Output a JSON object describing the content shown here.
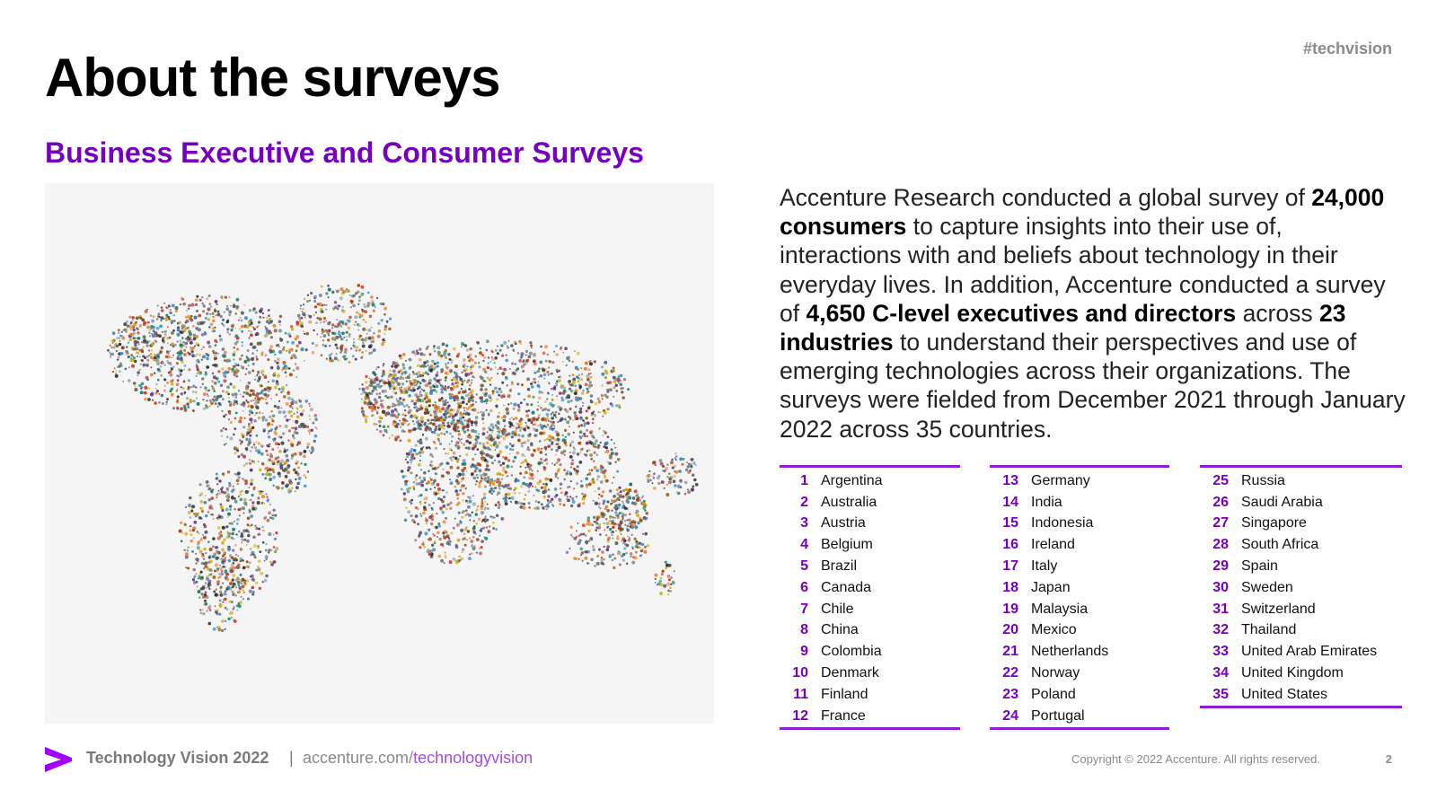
{
  "header": {
    "hashtag": "#techvision",
    "title": "About the surveys",
    "subtitle": "Business Executive and Consumer Surveys"
  },
  "intro": {
    "p1": "Accenture Research conducted a global survey of ",
    "b1": "24,000 consumers",
    "p2": " to capture insights into their use of, interactions with and beliefs about technology in their everyday lives. In addition, Accenture conducted a survey of ",
    "b2": "4,650 C-level executives and directors",
    "p3": " across ",
    "b3": "23 industries",
    "p4": " to understand their perspectives and use of emerging technologies across their organizations. The surveys were fielded from December 2021 through January 2022 across 35 countries."
  },
  "countries": [
    {
      "num": "1",
      "name": "Argentina"
    },
    {
      "num": "2",
      "name": "Australia"
    },
    {
      "num": "3",
      "name": "Austria"
    },
    {
      "num": "4",
      "name": "Belgium"
    },
    {
      "num": "5",
      "name": "Brazil"
    },
    {
      "num": "6",
      "name": "Canada"
    },
    {
      "num": "7",
      "name": "Chile"
    },
    {
      "num": "8",
      "name": "China"
    },
    {
      "num": "9",
      "name": "Colombia"
    },
    {
      "num": "10",
      "name": "Denmark"
    },
    {
      "num": "11",
      "name": "Finland"
    },
    {
      "num": "12",
      "name": "France"
    },
    {
      "num": "13",
      "name": "Germany"
    },
    {
      "num": "14",
      "name": "India"
    },
    {
      "num": "15",
      "name": "Indonesia"
    },
    {
      "num": "16",
      "name": "Ireland"
    },
    {
      "num": "17",
      "name": "Italy"
    },
    {
      "num": "18",
      "name": "Japan"
    },
    {
      "num": "19",
      "name": "Malaysia"
    },
    {
      "num": "20",
      "name": "Mexico"
    },
    {
      "num": "21",
      "name": "Netherlands"
    },
    {
      "num": "22",
      "name": "Norway"
    },
    {
      "num": "23",
      "name": "Poland"
    },
    {
      "num": "24",
      "name": "Portugal"
    },
    {
      "num": "25",
      "name": "Russia"
    },
    {
      "num": "26",
      "name": "Saudi Arabia"
    },
    {
      "num": "27",
      "name": "Singapore"
    },
    {
      "num": "28",
      "name": "South Africa"
    },
    {
      "num": "29",
      "name": "Spain"
    },
    {
      "num": "30",
      "name": "Sweden"
    },
    {
      "num": "31",
      "name": "Switzerland"
    },
    {
      "num": "32",
      "name": "Thailand"
    },
    {
      "num": "33",
      "name": "United Arab Emirates"
    },
    {
      "num": "34",
      "name": "United Kingdom"
    },
    {
      "num": "35",
      "name": "United States"
    }
  ],
  "footer": {
    "brand": "Technology Vision 2022",
    "separator": "|",
    "url_domain": "accenture.com/",
    "url_path": "technologyvision",
    "copyright": "Copyright © 2022 Accenture. All rights reserved.",
    "page_number": "2"
  },
  "colors": {
    "accent": "#7500c0",
    "rule": "#8f1fd1",
    "muted": "#8a8a8a"
  },
  "icons": {
    "logo": "accenture-chevron-icon",
    "map": "world-map-crowd-icon"
  }
}
